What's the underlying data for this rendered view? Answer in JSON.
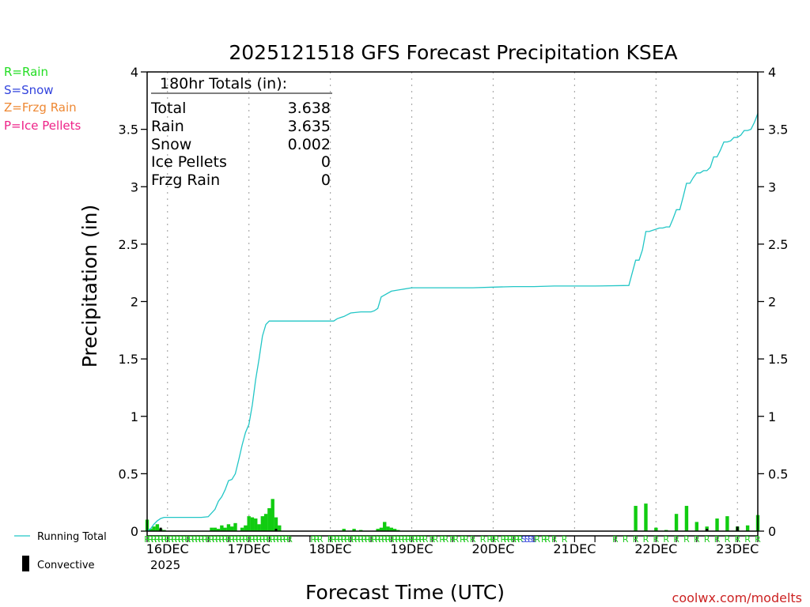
{
  "chart_data": {
    "type": "bar+line",
    "title": "2025121518 GFS Forecast Precipitation KSEA",
    "xlabel": "Forecast Time (UTC)",
    "ylabel": "Precipitation (in)",
    "ylim": [
      0,
      4
    ],
    "yticks": [
      "0",
      "0.5",
      "1",
      "1.5",
      "2",
      "2.5",
      "3",
      "3.5",
      "4"
    ],
    "forecast_hours": [
      0,
      180
    ],
    "day_labels": [
      {
        "label": "16DEC",
        "hour": 6
      },
      {
        "label": "17DEC",
        "hour": 30
      },
      {
        "label": "18DEC",
        "hour": 54
      },
      {
        "label": "19DEC",
        "hour": 78
      },
      {
        "label": "20DEC",
        "hour": 102
      },
      {
        "label": "21DEC",
        "hour": 126
      },
      {
        "label": "22DEC",
        "hour": 150
      },
      {
        "label": "23DEC",
        "hour": 174
      }
    ],
    "year_label": "2025",
    "legend_types": [
      {
        "label": "R=Rain",
        "color": "#22dd22"
      },
      {
        "label": "S=Snow",
        "color": "#3344dd"
      },
      {
        "label": "Z=Frzg Rain",
        "color": "#ee8833"
      },
      {
        "label": "P=Ice Pellets",
        "color": "#ee2288"
      }
    ],
    "legend_series": {
      "running_total": "Running Total",
      "convective": "Convective"
    },
    "totals_box": {
      "header": "180hr Totals (in):",
      "rows": [
        {
          "label": "Total",
          "value": "3.638"
        },
        {
          "label": "Rain",
          "value": "3.635"
        },
        {
          "label": "Snow",
          "value": "0.002"
        },
        {
          "label": "Ice Pellets",
          "value": "0"
        },
        {
          "label": "Frzg Rain",
          "value": "0"
        }
      ]
    },
    "running_total": {
      "hours": [
        0,
        1,
        2,
        3,
        4,
        5,
        6,
        8,
        12,
        16,
        18,
        20,
        21,
        22,
        23,
        24,
        25,
        26,
        27,
        28,
        29,
        30,
        31,
        32,
        33,
        34,
        35,
        36,
        37,
        38,
        39,
        40,
        41,
        42,
        43,
        44,
        50,
        54,
        55,
        56,
        57,
        58,
        60,
        63,
        64,
        65,
        66,
        67,
        68,
        69,
        72,
        78,
        84,
        90,
        96,
        102,
        108,
        114,
        120,
        126,
        132,
        142,
        143,
        144,
        145,
        146,
        147,
        148,
        149,
        150,
        151,
        152,
        153,
        154,
        155,
        156,
        157,
        158,
        159,
        160,
        161,
        162,
        163,
        164,
        165,
        166,
        167,
        168,
        169,
        170,
        171,
        172,
        173,
        174,
        175,
        176,
        177,
        178,
        179,
        180
      ],
      "values": [
        0.0,
        0.02,
        0.06,
        0.09,
        0.11,
        0.12,
        0.12,
        0.12,
        0.12,
        0.12,
        0.125,
        0.19,
        0.26,
        0.3,
        0.36,
        0.44,
        0.45,
        0.5,
        0.62,
        0.75,
        0.86,
        0.93,
        1.1,
        1.32,
        1.5,
        1.7,
        1.8,
        1.83,
        1.83,
        1.83,
        1.83,
        1.83,
        1.83,
        1.83,
        1.83,
        1.83,
        1.83,
        1.83,
        1.83,
        1.85,
        1.86,
        1.87,
        1.9,
        1.91,
        1.91,
        1.91,
        1.91,
        1.92,
        1.94,
        2.04,
        2.09,
        2.12,
        2.12,
        2.12,
        2.12,
        2.125,
        2.13,
        2.13,
        2.135,
        2.135,
        2.135,
        2.14,
        2.25,
        2.36,
        2.36,
        2.45,
        2.61,
        2.61,
        2.62,
        2.63,
        2.64,
        2.64,
        2.65,
        2.65,
        2.72,
        2.8,
        2.8,
        2.91,
        3.03,
        3.03,
        3.08,
        3.12,
        3.12,
        3.14,
        3.14,
        3.17,
        3.26,
        3.26,
        3.32,
        3.39,
        3.39,
        3.4,
        3.43,
        3.43,
        3.45,
        3.49,
        3.49,
        3.5,
        3.56,
        3.638
      ]
    },
    "bars": [
      {
        "hour": 0,
        "value": 0.1
      },
      {
        "hour": 1,
        "value": 0.02
      },
      {
        "hour": 2,
        "value": 0.04
      },
      {
        "hour": 3,
        "value": 0.06
      },
      {
        "hour": 4,
        "value": 0.02
      },
      {
        "hour": 5,
        "value": 0.01
      },
      {
        "hour": 19,
        "value": 0.03
      },
      {
        "hour": 20,
        "value": 0.03
      },
      {
        "hour": 21,
        "value": 0.02
      },
      {
        "hour": 22,
        "value": 0.05
      },
      {
        "hour": 23,
        "value": 0.03
      },
      {
        "hour": 24,
        "value": 0.06
      },
      {
        "hour": 25,
        "value": 0.04
      },
      {
        "hour": 26,
        "value": 0.07
      },
      {
        "hour": 28,
        "value": 0.03
      },
      {
        "hour": 29,
        "value": 0.05
      },
      {
        "hour": 30,
        "value": 0.13
      },
      {
        "hour": 31,
        "value": 0.12
      },
      {
        "hour": 32,
        "value": 0.11
      },
      {
        "hour": 33,
        "value": 0.06
      },
      {
        "hour": 34,
        "value": 0.13
      },
      {
        "hour": 35,
        "value": 0.15
      },
      {
        "hour": 36,
        "value": 0.2
      },
      {
        "hour": 37,
        "value": 0.28
      },
      {
        "hour": 38,
        "value": 0.12
      },
      {
        "hour": 39,
        "value": 0.05
      },
      {
        "hour": 58,
        "value": 0.02
      },
      {
        "hour": 61,
        "value": 0.02
      },
      {
        "hour": 63,
        "value": 0.01
      },
      {
        "hour": 68,
        "value": 0.02
      },
      {
        "hour": 69,
        "value": 0.03
      },
      {
        "hour": 70,
        "value": 0.08
      },
      {
        "hour": 71,
        "value": 0.04
      },
      {
        "hour": 72,
        "value": 0.03
      },
      {
        "hour": 73,
        "value": 0.02
      },
      {
        "hour": 74,
        "value": 0.01
      },
      {
        "hour": 144,
        "value": 0.22
      },
      {
        "hour": 147,
        "value": 0.24
      },
      {
        "hour": 150,
        "value": 0.03
      },
      {
        "hour": 153,
        "value": 0.01
      },
      {
        "hour": 156,
        "value": 0.15
      },
      {
        "hour": 159,
        "value": 0.22
      },
      {
        "hour": 162,
        "value": 0.08
      },
      {
        "hour": 165,
        "value": 0.04
      },
      {
        "hour": 168,
        "value": 0.11
      },
      {
        "hour": 171,
        "value": 0.13
      },
      {
        "hour": 174,
        "value": 0.04
      },
      {
        "hour": 177,
        "value": 0.05
      },
      {
        "hour": 180,
        "value": 0.14
      }
    ],
    "convective_bars": [
      {
        "hour": 4,
        "value": 0.03
      },
      {
        "hour": 38,
        "value": 0.02
      },
      {
        "hour": 165,
        "value": 0.02
      },
      {
        "hour": 174,
        "value": 0.04
      }
    ],
    "type_markers": [
      {
        "hour": 0,
        "type": "R"
      },
      {
        "hour": 1,
        "type": "R"
      },
      {
        "hour": 2,
        "type": "R"
      },
      {
        "hour": 3,
        "type": "R"
      },
      {
        "hour": 4,
        "type": "R"
      },
      {
        "hour": 5,
        "type": "R"
      },
      {
        "hour": 6,
        "type": "R"
      },
      {
        "hour": 7,
        "type": "R"
      },
      {
        "hour": 8,
        "type": "R"
      },
      {
        "hour": 9,
        "type": "R"
      },
      {
        "hour": 10,
        "type": "R"
      },
      {
        "hour": 11,
        "type": "R"
      },
      {
        "hour": 12,
        "type": "R"
      },
      {
        "hour": 13,
        "type": "R"
      },
      {
        "hour": 14,
        "type": "R"
      },
      {
        "hour": 15,
        "type": "R"
      },
      {
        "hour": 16,
        "type": "R"
      },
      {
        "hour": 17,
        "type": "R"
      },
      {
        "hour": 18,
        "type": "R"
      },
      {
        "hour": 19,
        "type": "R"
      },
      {
        "hour": 20,
        "type": "R"
      },
      {
        "hour": 21,
        "type": "R"
      },
      {
        "hour": 22,
        "type": "R"
      },
      {
        "hour": 23,
        "type": "R"
      },
      {
        "hour": 24,
        "type": "R"
      },
      {
        "hour": 25,
        "type": "R"
      },
      {
        "hour": 26,
        "type": "R"
      },
      {
        "hour": 27,
        "type": "R"
      },
      {
        "hour": 28,
        "type": "R"
      },
      {
        "hour": 29,
        "type": "R"
      },
      {
        "hour": 30,
        "type": "R"
      },
      {
        "hour": 31,
        "type": "R"
      },
      {
        "hour": 32,
        "type": "R"
      },
      {
        "hour": 33,
        "type": "R"
      },
      {
        "hour": 34,
        "type": "R"
      },
      {
        "hour": 35,
        "type": "R"
      },
      {
        "hour": 36,
        "type": "R"
      },
      {
        "hour": 37,
        "type": "R"
      },
      {
        "hour": 38,
        "type": "R"
      },
      {
        "hour": 39,
        "type": "R"
      },
      {
        "hour": 40,
        "type": "R"
      },
      {
        "hour": 41,
        "type": "R"
      },
      {
        "hour": 42,
        "type": "R"
      },
      {
        "hour": 49,
        "type": "R"
      },
      {
        "hour": 50,
        "type": "R"
      },
      {
        "hour": 51,
        "type": "R"
      },
      {
        "hour": 54,
        "type": "R"
      },
      {
        "hour": 55,
        "type": "R"
      },
      {
        "hour": 56,
        "type": "R"
      },
      {
        "hour": 57,
        "type": "R"
      },
      {
        "hour": 58,
        "type": "R"
      },
      {
        "hour": 59,
        "type": "R"
      },
      {
        "hour": 60,
        "type": "R"
      },
      {
        "hour": 61,
        "type": "R"
      },
      {
        "hour": 62,
        "type": "R"
      },
      {
        "hour": 63,
        "type": "R"
      },
      {
        "hour": 64,
        "type": "R"
      },
      {
        "hour": 65,
        "type": "R"
      },
      {
        "hour": 66,
        "type": "R"
      },
      {
        "hour": 67,
        "type": "R"
      },
      {
        "hour": 68,
        "type": "R"
      },
      {
        "hour": 69,
        "type": "R"
      },
      {
        "hour": 70,
        "type": "R"
      },
      {
        "hour": 71,
        "type": "R"
      },
      {
        "hour": 72,
        "type": "R"
      },
      {
        "hour": 73,
        "type": "R"
      },
      {
        "hour": 74,
        "type": "R"
      },
      {
        "hour": 75,
        "type": "R"
      },
      {
        "hour": 76,
        "type": "R"
      },
      {
        "hour": 77,
        "type": "R"
      },
      {
        "hour": 78,
        "type": "R"
      },
      {
        "hour": 79,
        "type": "R"
      },
      {
        "hour": 80,
        "type": "R"
      },
      {
        "hour": 81,
        "type": "R"
      },
      {
        "hour": 82,
        "type": "R"
      },
      {
        "hour": 84,
        "type": "R"
      },
      {
        "hour": 85,
        "type": "R"
      },
      {
        "hour": 87,
        "type": "R"
      },
      {
        "hour": 88,
        "type": "R"
      },
      {
        "hour": 90,
        "type": "R"
      },
      {
        "hour": 91,
        "type": "R"
      },
      {
        "hour": 93,
        "type": "R"
      },
      {
        "hour": 94,
        "type": "R"
      },
      {
        "hour": 96,
        "type": "R"
      },
      {
        "hour": 99,
        "type": "R"
      },
      {
        "hour": 101,
        "type": "R"
      },
      {
        "hour": 102,
        "type": "R"
      },
      {
        "hour": 103,
        "type": "R"
      },
      {
        "hour": 105,
        "type": "R"
      },
      {
        "hour": 106,
        "type": "R"
      },
      {
        "hour": 107,
        "type": "R"
      },
      {
        "hour": 108,
        "type": "R"
      },
      {
        "hour": 109,
        "type": "R"
      },
      {
        "hour": 110,
        "type": "R"
      },
      {
        "hour": 111,
        "type": "S"
      },
      {
        "hour": 112,
        "type": "S"
      },
      {
        "hour": 113,
        "type": "S"
      },
      {
        "hour": 114,
        "type": "S"
      },
      {
        "hour": 115,
        "type": "R"
      },
      {
        "hour": 117,
        "type": "R"
      },
      {
        "hour": 118,
        "type": "R"
      },
      {
        "hour": 120,
        "type": "R"
      },
      {
        "hour": 123,
        "type": "R"
      },
      {
        "hour": 138,
        "type": "R"
      },
      {
        "hour": 141,
        "type": "R"
      },
      {
        "hour": 144,
        "type": "R"
      },
      {
        "hour": 147,
        "type": "R"
      },
      {
        "hour": 150,
        "type": "R"
      },
      {
        "hour": 153,
        "type": "R"
      },
      {
        "hour": 156,
        "type": "R"
      },
      {
        "hour": 159,
        "type": "R"
      },
      {
        "hour": 162,
        "type": "R"
      },
      {
        "hour": 165,
        "type": "R"
      },
      {
        "hour": 168,
        "type": "R"
      },
      {
        "hour": 171,
        "type": "R"
      },
      {
        "hour": 174,
        "type": "R"
      },
      {
        "hour": 177,
        "type": "R"
      },
      {
        "hour": 180,
        "type": "R"
      }
    ],
    "colors": {
      "running_total": "#22c6c6",
      "bar": "#11cc11",
      "convective": "#000000",
      "rain_marker": "#22cc22",
      "snow_marker": "#3344dd",
      "watermark": "#cc2222",
      "grid": "#aaaaaa"
    },
    "credit": "coolwx.com/modelts"
  }
}
